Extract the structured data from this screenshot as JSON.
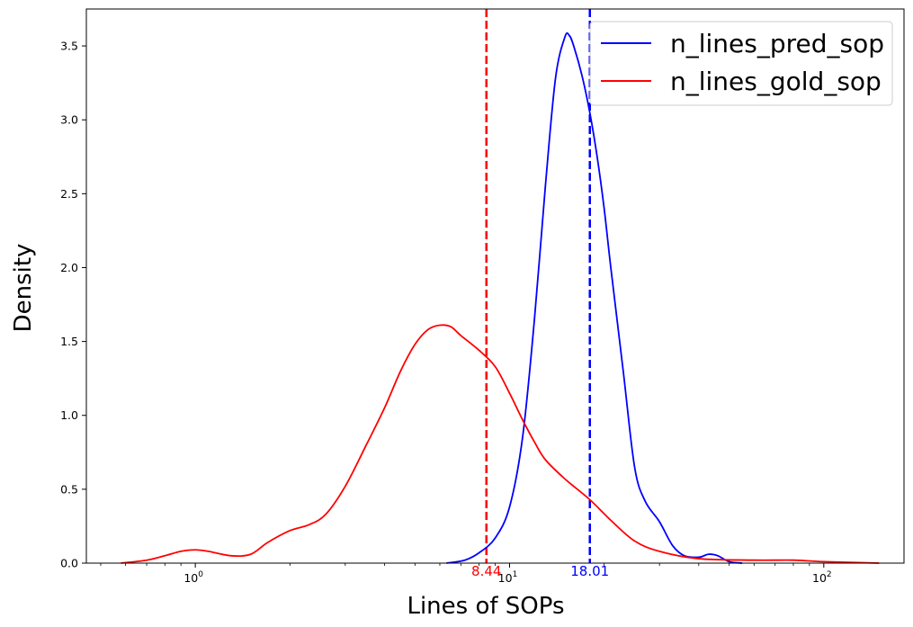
{
  "chart_data": {
    "type": "line",
    "title": "",
    "xlabel": "Lines of SOPs",
    "ylabel": "Density",
    "x_scale": "log",
    "xlim": [
      0.45,
      180
    ],
    "ylim": [
      0,
      3.75
    ],
    "grid": false,
    "legend_position": "top-right",
    "x_ticks": [
      {
        "value": 1,
        "base": "10",
        "exp": "0"
      },
      {
        "value": 10,
        "base": "10",
        "exp": "1"
      },
      {
        "value": 100,
        "base": "10",
        "exp": "2"
      }
    ],
    "y_ticks": [
      {
        "value": 0.0,
        "label": "0.0"
      },
      {
        "value": 0.5,
        "label": "0.5"
      },
      {
        "value": 1.0,
        "label": "1.0"
      },
      {
        "value": 1.5,
        "label": "1.5"
      },
      {
        "value": 2.0,
        "label": "2.0"
      },
      {
        "value": 2.5,
        "label": "2.5"
      },
      {
        "value": 3.0,
        "label": "3.0"
      },
      {
        "value": 3.5,
        "label": "3.5"
      }
    ],
    "series": [
      {
        "name": "n_lines_pred_sop",
        "color": "#0000ff",
        "x": [
          6.3,
          7.2,
          8.0,
          9.0,
          10.0,
          11.0,
          12.0,
          13.0,
          14.0,
          15.0,
          15.5,
          16.0,
          17.0,
          18.0,
          19.0,
          20.0,
          21.0,
          23.0,
          25.0,
          27.0,
          30.0,
          33.0,
          36.0,
          40.0,
          43.0,
          46.0,
          50.0,
          55.0
        ],
        "y": [
          0.0,
          0.02,
          0.07,
          0.17,
          0.38,
          0.85,
          1.65,
          2.55,
          3.28,
          3.56,
          3.57,
          3.5,
          3.3,
          3.05,
          2.75,
          2.4,
          2.0,
          1.3,
          0.65,
          0.42,
          0.28,
          0.12,
          0.05,
          0.04,
          0.06,
          0.05,
          0.01,
          0.0
        ]
      },
      {
        "name": "n_lines_gold_sop",
        "color": "#ff0000",
        "x": [
          0.58,
          0.7,
          0.8,
          0.9,
          1.0,
          1.1,
          1.3,
          1.5,
          1.7,
          2.0,
          2.3,
          2.6,
          3.0,
          3.5,
          4.0,
          4.5,
          5.0,
          5.5,
          6.0,
          6.5,
          7.0,
          8.0,
          9.0,
          10.0,
          11.0,
          12.0,
          13.0,
          15.0,
          18.0,
          21.0,
          25.0,
          30.0,
          40.0,
          60.0,
          80.0,
          100.0,
          150.0
        ],
        "y": [
          0.0,
          0.02,
          0.05,
          0.08,
          0.09,
          0.08,
          0.05,
          0.06,
          0.14,
          0.22,
          0.26,
          0.33,
          0.52,
          0.8,
          1.05,
          1.3,
          1.48,
          1.58,
          1.61,
          1.6,
          1.54,
          1.44,
          1.33,
          1.15,
          0.97,
          0.82,
          0.7,
          0.57,
          0.43,
          0.29,
          0.15,
          0.08,
          0.03,
          0.02,
          0.02,
          0.01,
          0.0
        ]
      }
    ],
    "vlines": [
      {
        "x": 8.44,
        "label": "8.44",
        "color": "#ff0000"
      },
      {
        "x": 18.01,
        "label": "18.01",
        "color": "#0000ff"
      }
    ]
  }
}
